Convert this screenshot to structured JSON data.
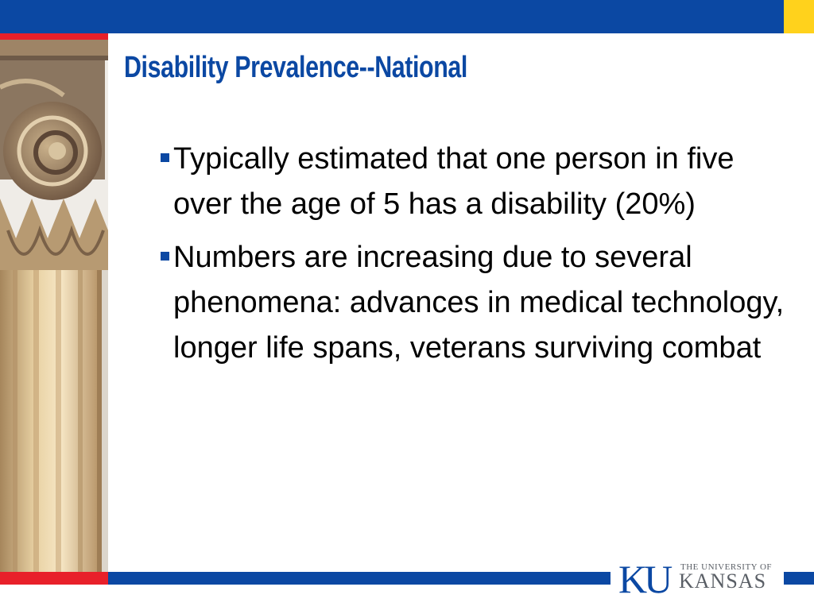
{
  "slide": {
    "title": "Disability Prevalence--National",
    "bullets": [
      "Typically estimated that one person in five over the age of 5 has a disability (20%)",
      "Numbers are increasing due to several phenomena: advances in medical technology, longer life spans, veterans surviving combat"
    ]
  },
  "logo": {
    "monogram": "KU",
    "line1": "THE UNIVERSITY OF",
    "line2": "KANSAS"
  },
  "colors": {
    "brand_blue": "#0b48a3",
    "accent_red": "#e8202a",
    "accent_yellow": "#ffd21c"
  },
  "icons": {
    "bullet": "square-bullet-icon",
    "column": "ionic-column-image"
  }
}
